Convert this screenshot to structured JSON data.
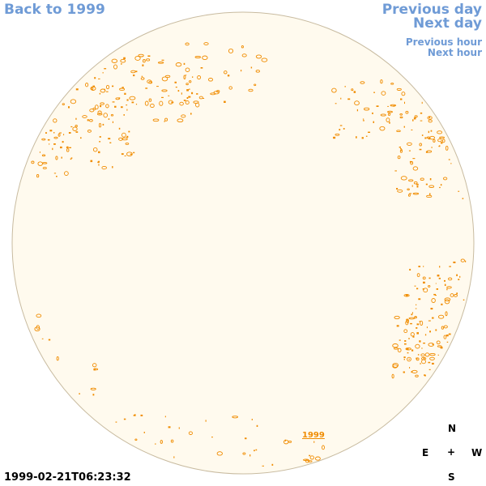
{
  "nav": {
    "back_label": "Back to 1999",
    "prev_day_label": "Previous day",
    "next_day_label": "Next day",
    "prev_hour_label": "Previous hour",
    "next_hour_label": "Next hour"
  },
  "disk": {
    "fill_color": "#fffaee",
    "edge_color": "#c8bba0",
    "feature_color": "#f08c00"
  },
  "year_marker": "1999",
  "timestamp": "1999-02-21T06:23:32",
  "compass": {
    "n": "N",
    "e": "E",
    "center": "+",
    "w": "W",
    "s": "S"
  }
}
